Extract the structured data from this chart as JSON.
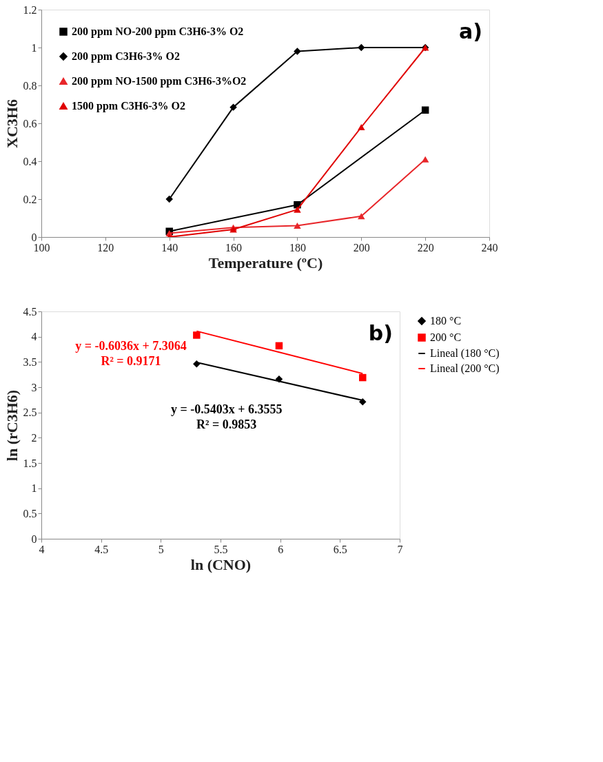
{
  "chart_data": [
    {
      "type": "line",
      "xlabel": "Temperature (ºC)",
      "ylabel": "XC3H6",
      "xlim": [
        100,
        240
      ],
      "xticks": [
        100,
        120,
        140,
        160,
        180,
        200,
        220,
        240
      ],
      "ylim": [
        0,
        1.2
      ],
      "yticks": [
        0,
        0.2,
        0.4,
        0.6,
        0.8,
        1,
        1.2
      ],
      "grid": false,
      "legend": "top left",
      "annotations": [
        "a)"
      ],
      "x": [
        140,
        160,
        180,
        200,
        220
      ],
      "series": [
        {
          "name": "200 ppm NO-200 ppm C3H6-3% O2",
          "color": "#000000",
          "marker": "square",
          "x": [
            140,
            180,
            220
          ],
          "values": [
            0.03,
            0.17,
            0.67
          ]
        },
        {
          "name": "200 ppm C3H6-3% O2",
          "color": "#000000",
          "marker": "diamond",
          "values": [
            0.2,
            0.685,
            0.98,
            1.0,
            1.0
          ]
        },
        {
          "name": "200 ppm NO-1500 ppm C3H6-3%O2",
          "color": "#e8262a",
          "marker": "triangle",
          "values": [
            0.02,
            0.05,
            0.06,
            0.11,
            0.41
          ]
        },
        {
          "name": "1500 ppm C3H6-3% O2",
          "color": "#e00000",
          "marker": "triangle",
          "values": [
            0.0,
            0.04,
            0.145,
            0.58,
            1.0
          ]
        }
      ]
    },
    {
      "type": "scatter",
      "xlabel": "ln (CNO)",
      "ylabel": "ln (rC3H6)",
      "xlim": [
        4,
        7
      ],
      "xticks": [
        4,
        4.5,
        5,
        5.5,
        6,
        6.5,
        7
      ],
      "ylim": [
        0,
        4.5
      ],
      "yticks": [
        0,
        0.5,
        1,
        1.5,
        2,
        2.5,
        3,
        3.5,
        4,
        4.5
      ],
      "grid": false,
      "legend": "right",
      "annotations": [
        "b)",
        "y = -0.6036x + 7.3064",
        "R² = 0.9171",
        "y = -0.5403x + 6.3555",
        "R² = 0.9853"
      ],
      "x": [
        5.3,
        5.99,
        6.69
      ],
      "series": [
        {
          "name": "180 °C",
          "color": "#000000",
          "marker": "diamond",
          "values": [
            3.46,
            3.16,
            2.71
          ]
        },
        {
          "name": "200 °C",
          "color": "#ff0000",
          "marker": "square",
          "values": [
            4.03,
            3.82,
            3.19
          ]
        },
        {
          "name": "Lineal (180 °C)",
          "type": "line",
          "color": "#000000",
          "marker": "none",
          "x": [
            5.3,
            6.69
          ],
          "values": [
            3.49,
            2.74
          ]
        },
        {
          "name": "Lineal (200 °C)",
          "type": "line",
          "color": "#ff0000",
          "marker": "none",
          "x": [
            5.3,
            6.69
          ],
          "values": [
            4.11,
            3.27
          ]
        }
      ]
    }
  ]
}
